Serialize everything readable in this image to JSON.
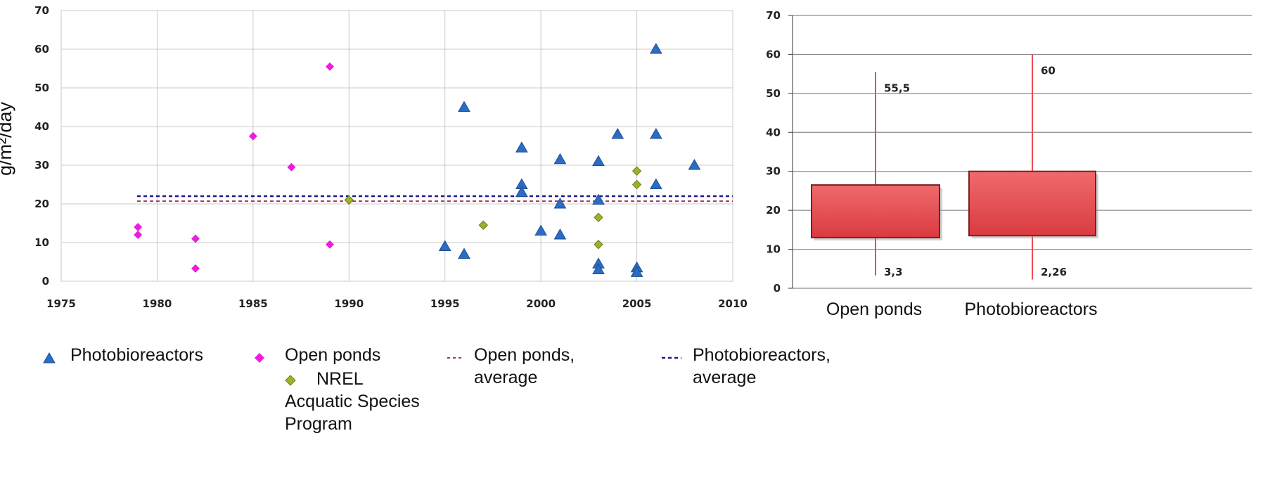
{
  "chart_data": [
    {
      "type": "scatter",
      "ylabel": "g/m²/day",
      "xlim": [
        1975,
        2010
      ],
      "ylim": [
        0,
        70
      ],
      "x_ticks": [
        "1975",
        "1980",
        "1985",
        "1990",
        "1995",
        "2000",
        "2005",
        "2010"
      ],
      "y_ticks": [
        "0",
        "10",
        "20",
        "30",
        "40",
        "50",
        "60",
        "70"
      ],
      "grid": true,
      "series": [
        {
          "name": "Photobioreactors",
          "marker": "triangle",
          "color": "#2b6cc4",
          "points": [
            [
              1995,
              9
            ],
            [
              1996,
              45
            ],
            [
              1996,
              7
            ],
            [
              1999,
              34.5
            ],
            [
              1999,
              25
            ],
            [
              1999,
              23
            ],
            [
              2000,
              13
            ],
            [
              2001,
              31.5
            ],
            [
              2001,
              20
            ],
            [
              2001,
              12
            ],
            [
              2003,
              31
            ],
            [
              2003,
              21
            ],
            [
              2003,
              4.5
            ],
            [
              2003,
              3
            ],
            [
              2004,
              38
            ],
            [
              2005,
              3.5
            ],
            [
              2005,
              2.3
            ],
            [
              2006,
              60
            ],
            [
              2006,
              38
            ],
            [
              2006,
              25
            ],
            [
              2008,
              30
            ]
          ]
        },
        {
          "name": "Open ponds",
          "marker": "diamond",
          "color": "#ee1ce0",
          "points": [
            [
              1979,
              14
            ],
            [
              1979,
              12
            ],
            [
              1982,
              11
            ],
            [
              1982,
              3.3
            ],
            [
              1985,
              37.5
            ],
            [
              1987,
              29.5
            ],
            [
              1989,
              55.5
            ],
            [
              1989,
              9.5
            ]
          ]
        },
        {
          "name": "NREL Acquatic Species Program",
          "marker": "diamond",
          "color": "#9bb229",
          "points": [
            [
              1990,
              21
            ],
            [
              1997,
              14.5
            ],
            [
              2003,
              16.5
            ],
            [
              2003,
              9.5
            ],
            [
              2005,
              28.5
            ],
            [
              2005,
              25
            ]
          ]
        }
      ],
      "reference_lines": [
        {
          "name": "Open ponds, average",
          "y": 20.7,
          "color": "#a8345d",
          "style": "dashed"
        },
        {
          "name": "Photobioreactors, average",
          "y": 22,
          "color": "#1a1a8c",
          "style": "dashed"
        }
      ],
      "legend": "bottom"
    },
    {
      "type": "box",
      "ylim": [
        0,
        70
      ],
      "y_ticks": [
        "0",
        "10",
        "20",
        "30",
        "40",
        "50",
        "60",
        "70"
      ],
      "grid": true,
      "categories": [
        "Open ponds",
        "Photobioreactors"
      ],
      "boxes": [
        {
          "category": "Open ponds",
          "min": 3.3,
          "q1": 13,
          "q3": 26.5,
          "max": 55.5,
          "min_label": "3,3",
          "max_label": "55,5"
        },
        {
          "category": "Photobioreactors",
          "min": 2.26,
          "q1": 13.5,
          "q3": 30,
          "max": 60,
          "min_label": "2,26",
          "max_label": "60"
        }
      ],
      "color": "#e84d51"
    }
  ],
  "legend_items": {
    "pbr": "Photobioreactors",
    "open_ponds": "Open ponds",
    "nrel": "NREL",
    "nrel_line2": "Acquatic Species",
    "nrel_line3": "Program",
    "open_avg": "Open ponds,",
    "open_avg_line2": "average",
    "pbr_avg": "Photobioreactors,",
    "pbr_avg_line2": "average"
  }
}
